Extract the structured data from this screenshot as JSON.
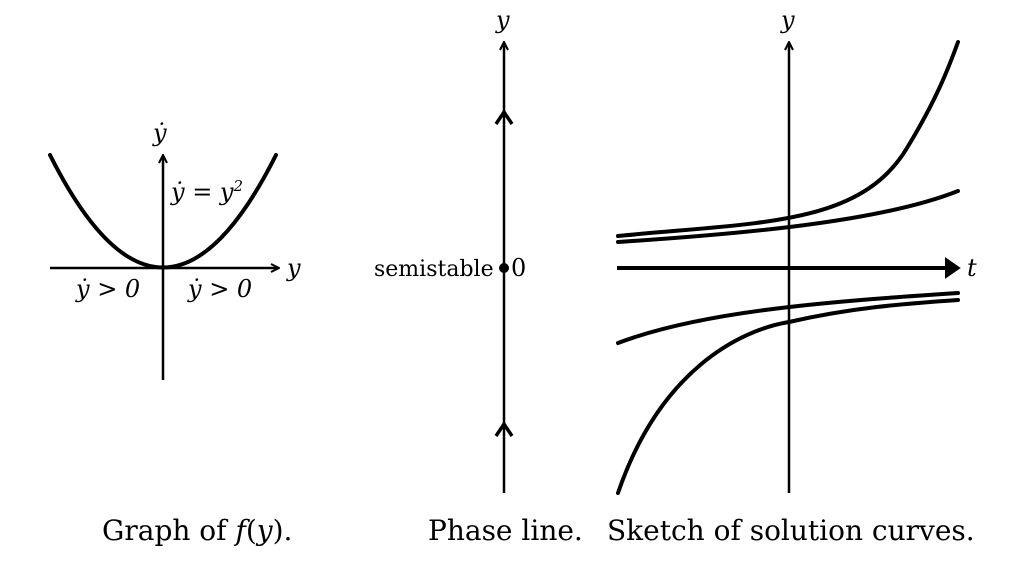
{
  "panel1": {
    "y_axis_label": "ẏ",
    "x_axis_label": "y",
    "equation_lhs": "ẏ = y",
    "equation_exp": "2",
    "left_sign": "ẏ > 0",
    "right_sign": "ẏ > 0",
    "caption_pre": "Graph of ",
    "caption_f": "f",
    "caption_open": "(",
    "caption_arg": "y",
    "caption_close": ").",
    "function": "y^2"
  },
  "panel2": {
    "axis_label": "y",
    "point_label": "semistable",
    "point_value": "0",
    "caption": "Phase line."
  },
  "panel3": {
    "y_axis_label": "y",
    "t_axis_label": "t",
    "caption": "Sketch of solution curves."
  }
}
